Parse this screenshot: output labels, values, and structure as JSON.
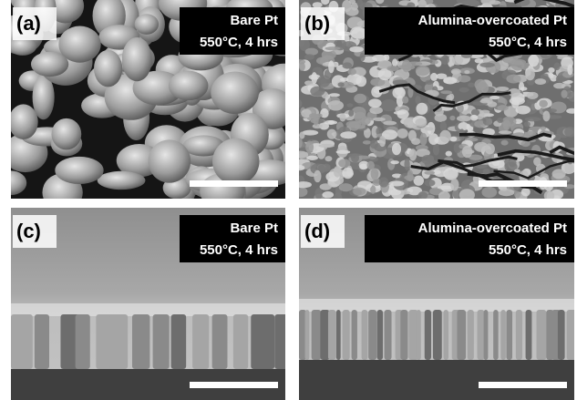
{
  "panels": [
    {
      "label": "(a)",
      "title": "Bare Pt",
      "condition": "550°C, 4 hrs"
    },
    {
      "label": "(b)",
      "title": "Alumina-overcoated Pt",
      "condition": "550°C, 4 hrs"
    },
    {
      "label": "(c)",
      "title": "Bare Pt",
      "condition": "550°C, 4 hrs"
    },
    {
      "label": "(d)",
      "title": "Alumina-overcoated Pt",
      "condition": "550°C, 4 hrs"
    }
  ]
}
